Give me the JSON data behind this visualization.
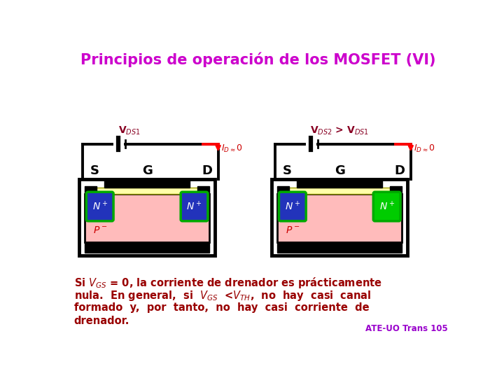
{
  "title": "Principios de operación de los MOSFET (VI)",
  "title_color": "#CC00CC",
  "title_fontsize": 15,
  "bg_color": "#FFFFFF",
  "footer": "ATE-UO Trans 105",
  "footer_color": "#9900CC",
  "label_VDS1": "V$_{DS1}$",
  "label_VDS2": "V$_{DS2}$ > V$_{DS1}$",
  "label_ID": "I$_{D\\approx}$ 0",
  "body_pink": "#FFBBBB",
  "oxide_yellow": "#FFFFAA",
  "n_blue": "#2233BB",
  "n_green": "#00CC00",
  "n_edge_green": "#00AA00",
  "red_text": "#CC0000",
  "dark_red_text": "#880022"
}
